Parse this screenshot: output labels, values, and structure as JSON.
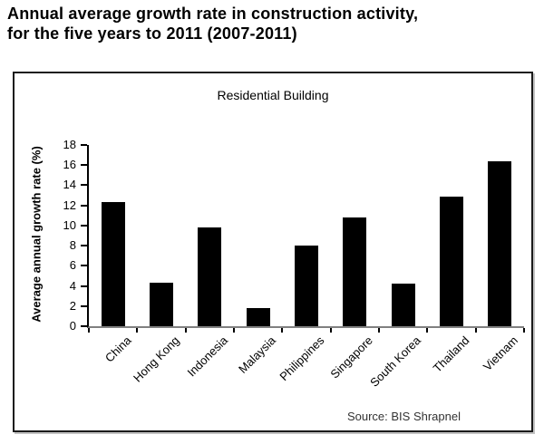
{
  "page": {
    "title": "Annual average growth rate in construction activity,\nfor the five years to 2011 (2007-2011)"
  },
  "chart": {
    "subtitle": "Residential Building",
    "y_axis_title": "Average annual growth rate (%)",
    "source": "Source: BIS Shrapnel"
  },
  "chart_data": {
    "type": "bar",
    "title": "Residential Building",
    "categories": [
      "China",
      "Hong Kong",
      "Indonesia",
      "Malaysia",
      "Philippines",
      "Singapore",
      "South Korea",
      "Thailand",
      "Vietnam"
    ],
    "values": [
      12.3,
      4.3,
      9.8,
      1.8,
      8.0,
      10.8,
      4.2,
      12.9,
      16.4
    ],
    "xlabel": "",
    "ylabel": "Average annual growth rate (%)",
    "ylim": [
      0,
      18
    ],
    "ytick_step": 2,
    "yticks": [
      0,
      2,
      4,
      6,
      8,
      10,
      12,
      14,
      16,
      18
    ],
    "bar_color": "#000000",
    "baseline_color": "#808080",
    "grid": false,
    "legend": false,
    "source": "Source: BIS Shrapnel"
  }
}
